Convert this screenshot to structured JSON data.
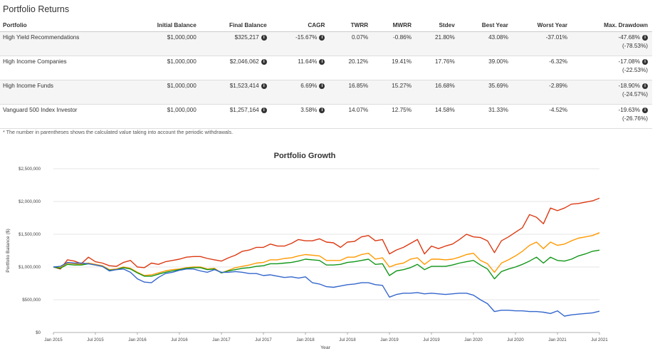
{
  "section_title": "Portfolio Returns",
  "table": {
    "headers": [
      "Portfolio",
      "Initial Balance",
      "Final Balance",
      "CAGR",
      "TWRR",
      "MWRR",
      "Stdev",
      "Best Year",
      "Worst Year",
      "Max. Drawdown"
    ],
    "rows": [
      {
        "name": "High Yield Recommendations",
        "initial": "$1,000,000",
        "final": "$325,217",
        "cagr": "-15.67%",
        "twrr": "0.07%",
        "mwrr": "-0.86%",
        "stdev": "21.80%",
        "best": "43.08%",
        "worst": "-37.01%",
        "dd": "-47.68%",
        "dd2": "(-78.53%)"
      },
      {
        "name": "High Income Companies",
        "initial": "$1,000,000",
        "final": "$2,046,062",
        "cagr": "11.64%",
        "twrr": "20.12%",
        "mwrr": "19.41%",
        "stdev": "17.76%",
        "best": "39.00%",
        "worst": "-6.32%",
        "dd": "-17.08%",
        "dd2": "(-22.53%)"
      },
      {
        "name": "High Income Funds",
        "initial": "$1,000,000",
        "final": "$1,523,414",
        "cagr": "6.69%",
        "twrr": "16.85%",
        "mwrr": "15.27%",
        "stdev": "16.68%",
        "best": "35.69%",
        "worst": "-2.89%",
        "dd": "-18.90%",
        "dd2": "(-24.57%)"
      },
      {
        "name": "Vanguard 500 Index Investor",
        "initial": "$1,000,000",
        "final": "$1,257,164",
        "cagr": "3.58%",
        "twrr": "14.07%",
        "mwrr": "12.75%",
        "stdev": "14.58%",
        "best": "31.33%",
        "worst": "-4.52%",
        "dd": "-19.63%",
        "dd2": "(-26.76%)"
      }
    ],
    "info_icon": "info-circle-icon"
  },
  "footnote": "* The number in parentheses shows the calculated value taking into account the periodic withdrawals.",
  "chart_data": {
    "type": "line",
    "title": "Portfolio Growth",
    "xlabel": "Year",
    "ylabel": "Portfolio Balance ($)",
    "ylim": [
      0,
      2500000
    ],
    "yticks": [
      0,
      500000,
      1000000,
      1500000,
      2000000,
      2500000
    ],
    "ytick_labels": [
      "$0",
      "$500,000",
      "$1,000,000",
      "$1,500,000",
      "$2,000,000",
      "$2,500,000"
    ],
    "xlim": [
      0,
      78
    ],
    "xticks": [
      0,
      6,
      12,
      18,
      24,
      30,
      36,
      42,
      48,
      54,
      60,
      66,
      72,
      78
    ],
    "xtick_labels": [
      "Jan 2015",
      "Jul 2015",
      "Jan 2016",
      "Jul 2016",
      "Jan 2017",
      "Jul 2017",
      "Jan 2018",
      "Jul 2018",
      "Jan 2019",
      "Jul 2019",
      "Jan 2020",
      "Jul 2020",
      "Jan 2021",
      "Jul 2021"
    ],
    "grid": true,
    "series": [
      {
        "color": "#dc3912",
        "values": [
          1000000,
          970000,
          1110000,
          1090000,
          1050000,
          1150000,
          1080000,
          1060000,
          1020000,
          1010000,
          1070000,
          1100000,
          1000000,
          990000,
          1060000,
          1040000,
          1080000,
          1100000,
          1120000,
          1150000,
          1160000,
          1160000,
          1130000,
          1110000,
          1090000,
          1140000,
          1180000,
          1240000,
          1260000,
          1300000,
          1300000,
          1350000,
          1320000,
          1320000,
          1360000,
          1420000,
          1400000,
          1400000,
          1430000,
          1380000,
          1370000,
          1300000,
          1380000,
          1390000,
          1460000,
          1480000,
          1400000,
          1420000,
          1200000,
          1260000,
          1300000,
          1360000,
          1420000,
          1200000,
          1320000,
          1280000,
          1320000,
          1350000,
          1420000,
          1500000,
          1460000,
          1450000,
          1400000,
          1220000,
          1400000,
          1460000,
          1530000,
          1600000,
          1800000,
          1760000,
          1660000,
          1900000,
          1860000,
          1900000,
          1960000,
          1970000,
          1990000,
          2010000,
          2050000
        ]
      },
      {
        "color": "#ff9900",
        "values": [
          1000000,
          990000,
          1060000,
          1050000,
          1040000,
          1060000,
          1040000,
          1020000,
          960000,
          970000,
          1000000,
          980000,
          920000,
          870000,
          880000,
          910000,
          940000,
          960000,
          970000,
          990000,
          1000000,
          1000000,
          970000,
          980000,
          910000,
          950000,
          990000,
          1010000,
          1030000,
          1060000,
          1070000,
          1110000,
          1110000,
          1130000,
          1140000,
          1170000,
          1190000,
          1180000,
          1170000,
          1100000,
          1100000,
          1100000,
          1150000,
          1150000,
          1190000,
          1210000,
          1120000,
          1140000,
          1000000,
          1040000,
          1060000,
          1120000,
          1140000,
          1040000,
          1120000,
          1120000,
          1110000,
          1120000,
          1150000,
          1190000,
          1210000,
          1100000,
          1050000,
          920000,
          1060000,
          1110000,
          1170000,
          1240000,
          1330000,
          1380000,
          1280000,
          1380000,
          1330000,
          1350000,
          1400000,
          1440000,
          1460000,
          1480000,
          1523414
        ]
      },
      {
        "color": "#109618",
        "values": [
          1000000,
          980000,
          1040000,
          1030000,
          1030000,
          1050000,
          1030000,
          1010000,
          950000,
          960000,
          990000,
          970000,
          910000,
          860000,
          860000,
          890000,
          920000,
          940000,
          960000,
          980000,
          990000,
          990000,
          960000,
          970000,
          910000,
          940000,
          960000,
          980000,
          990000,
          1010000,
          1020000,
          1050000,
          1050000,
          1060000,
          1070000,
          1090000,
          1120000,
          1110000,
          1100000,
          1030000,
          1030000,
          1040000,
          1070000,
          1080000,
          1100000,
          1120000,
          1040000,
          1050000,
          870000,
          940000,
          960000,
          990000,
          1040000,
          960000,
          1010000,
          1010000,
          1010000,
          1030000,
          1060000,
          1080000,
          1100000,
          1030000,
          970000,
          820000,
          930000,
          970000,
          1000000,
          1040000,
          1090000,
          1150000,
          1060000,
          1150000,
          1100000,
          1090000,
          1120000,
          1170000,
          1200000,
          1240000,
          1257164
        ]
      },
      {
        "color": "#3366cc",
        "values": [
          1000000,
          1010000,
          1070000,
          1060000,
          1060000,
          1050000,
          1030000,
          1010000,
          940000,
          960000,
          970000,
          920000,
          820000,
          770000,
          760000,
          840000,
          900000,
          920000,
          950000,
          970000,
          970000,
          940000,
          920000,
          960000,
          920000,
          920000,
          930000,
          920000,
          900000,
          900000,
          870000,
          880000,
          860000,
          840000,
          850000,
          830000,
          850000,
          760000,
          740000,
          700000,
          690000,
          710000,
          730000,
          740000,
          760000,
          760000,
          730000,
          720000,
          540000,
          580000,
          600000,
          600000,
          610000,
          590000,
          600000,
          590000,
          580000,
          590000,
          600000,
          600000,
          570000,
          500000,
          440000,
          320000,
          340000,
          340000,
          330000,
          330000,
          320000,
          320000,
          310000,
          290000,
          330000,
          250000,
          270000,
          280000,
          290000,
          300000,
          325217
        ]
      }
    ]
  },
  "chart_colors": {
    "grid": "#dddddd",
    "axis": "#999999"
  }
}
